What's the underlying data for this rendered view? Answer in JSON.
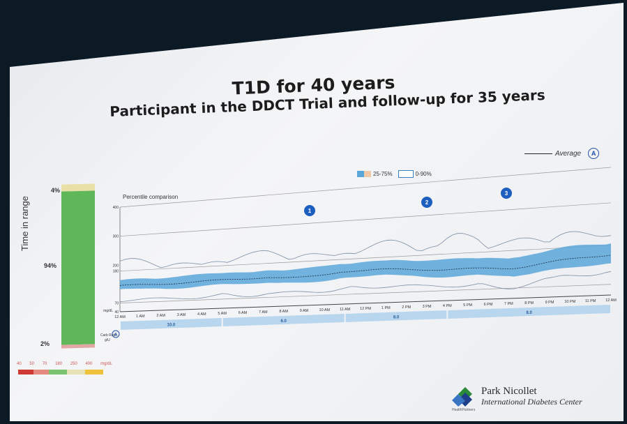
{
  "title": "T1D for 40 years",
  "subtitle": "Participant in the DDCT Trial and follow-up for 35 years",
  "time_in_range": {
    "axis_label": "Time in range",
    "top_pct": "4%",
    "mid_pct": "94%",
    "bottom_pct": "2%",
    "segments": [
      {
        "label": "high",
        "value": 4,
        "color": "#e9e0a8"
      },
      {
        "label": "in range",
        "value": 94,
        "color": "#5fb75a"
      },
      {
        "label": "low",
        "value": 2,
        "color": "#e3a7a3"
      }
    ]
  },
  "glucose_scale": {
    "labels": [
      "40",
      "50",
      "70",
      "180",
      "250",
      "400",
      "mg/dL"
    ],
    "colors": [
      "#cf3a33",
      "#e58a80",
      "#7cc36e",
      "#e7e3b6",
      "#f0c23c"
    ]
  },
  "chart": {
    "section_label": "Percentile comparison",
    "y_ticks": [
      "400",
      "300",
      "200",
      "180",
      "70",
      "40"
    ],
    "y_unit": "mg/dL",
    "x_ticks": [
      "12 AM",
      "1 AM",
      "2 AM",
      "3 AM",
      "4 AM",
      "5 AM",
      "6 AM",
      "7 AM",
      "8 AM",
      "9 AM",
      "10 AM",
      "11 AM",
      "12 PM",
      "1 PM",
      "2 PM",
      "3 PM",
      "4 PM",
      "5 PM",
      "6 PM",
      "7 PM",
      "8 PM",
      "9 PM",
      "10 PM",
      "11 PM",
      "12 AM"
    ],
    "legend_iqr": "25-75%",
    "legend_range": "0-90%",
    "legend_avg": "Average",
    "legend_avg_badge": "A",
    "markers": [
      "1",
      "2",
      "3"
    ],
    "carb_label": "Carb Ratio",
    "carb_unit": "g/U",
    "carb_badge": "A",
    "carb_values": [
      "10.0",
      "6.0",
      "8.0",
      "8.0"
    ]
  },
  "logo": {
    "name": "Park Nicollet",
    "sub": "International Diabetes Center",
    "small": "HealthPartners"
  },
  "colors": {
    "iqr_band": "#5aa6d9",
    "carb_bar": "#b9d6ef",
    "marker": "#1d5fbf"
  }
}
